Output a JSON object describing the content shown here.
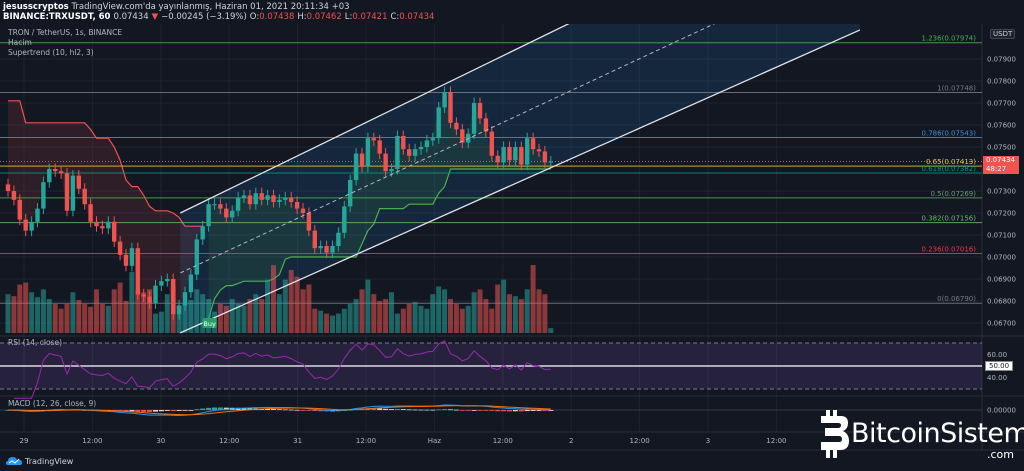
{
  "header": {
    "author": "jesusscryptos",
    "published": "TradingView.com'da yayınlanmış, Haziran 01, 2021 20:11:34 +03",
    "symbol": "BINANCE:TRXUSDT, 60",
    "last": "0.07434",
    "change": "−0.00245 (−3.19%)",
    "o_label": "O:",
    "o": "0.07438",
    "h_label": "H:",
    "h": "0.07462",
    "l_label": "L:",
    "l": "0.07421",
    "c_label": "C:",
    "c": "0.07434"
  },
  "legend": {
    "title": "TRON / TetherUS, 1s, BINANCE",
    "volume": "Hacim",
    "supertrend": "Supertrend (10, hl2, 3)"
  },
  "price_axis": {
    "currency": "USDT",
    "current_price": "0.07434",
    "countdown": "48:27"
  },
  "rsi": {
    "label": "RSI (14, close)",
    "period": 14,
    "ticks": [
      "60.00",
      "40.00"
    ],
    "midline": "50.00"
  },
  "macd": {
    "label": "MACD (12, 26, close, 9)",
    "fast": 12,
    "slow": 26,
    "signal": 9,
    "tick": "0.00000"
  },
  "signal_label": "Buy",
  "footer": {
    "tradingview": "TradingView"
  },
  "watermark": {
    "brand": "BitcoinSistemi",
    "suffix": ".com"
  },
  "colors": {
    "up": "#26a69a",
    "down": "#ef5350",
    "background": "#131722",
    "supertrend_up": "#4caf50",
    "supertrend_down": "#f05350",
    "rsi": "#9c27b0",
    "macd": "#2196f3",
    "macd_signal": "#ff6d00"
  },
  "chart_data": {
    "type": "candlestick",
    "interval": "60",
    "ylim": [
      0.0665,
      0.0802
    ],
    "grid": true,
    "y_ticks": [
      {
        "value": 0.079,
        "label": "0.07900"
      },
      {
        "value": 0.078,
        "label": "0.07800"
      },
      {
        "value": 0.077,
        "label": "0.07700"
      },
      {
        "value": 0.076,
        "label": "0.07600"
      },
      {
        "value": 0.075,
        "label": "0.07500"
      },
      {
        "value": 0.073,
        "label": "0.07300"
      },
      {
        "value": 0.072,
        "label": "0.07200"
      },
      {
        "value": 0.071,
        "label": "0.07100"
      },
      {
        "value": 0.07,
        "label": "0.07000"
      },
      {
        "value": 0.069,
        "label": "0.06900"
      },
      {
        "value": 0.068,
        "label": "0.06800"
      },
      {
        "value": 0.067,
        "label": "0.06700"
      }
    ],
    "x_ticks": [
      "29",
      "12:00",
      "30",
      "12:00",
      "31",
      "12:00",
      "Haz",
      "12:00",
      "2",
      "12:00",
      "3",
      "12:00"
    ],
    "close": [
      0.073,
      0.0726,
      0.0717,
      0.0712,
      0.0716,
      0.0722,
      0.0734,
      0.074,
      0.0739,
      0.0738,
      0.0721,
      0.0737,
      0.0731,
      0.0724,
      0.0716,
      0.0714,
      0.0713,
      0.0716,
      0.0707,
      0.0701,
      0.0696,
      0.0704,
      0.0683,
      0.0682,
      0.0679,
      0.0687,
      0.0689,
      0.069,
      0.0674,
      0.0678,
      0.0684,
      0.0692,
      0.0708,
      0.0714,
      0.0724,
      0.0724,
      0.0722,
      0.0718,
      0.0721,
      0.0727,
      0.0728,
      0.0724,
      0.0729,
      0.0726,
      0.0728,
      0.0725,
      0.0726,
      0.0727,
      0.0725,
      0.0722,
      0.072,
      0.0712,
      0.0704,
      0.0705,
      0.0702,
      0.0705,
      0.0711,
      0.0723,
      0.0735,
      0.0747,
      0.0741,
      0.0754,
      0.0753,
      0.0747,
      0.0739,
      0.074,
      0.0755,
      0.0749,
      0.0746,
      0.0749,
      0.075,
      0.0753,
      0.0754,
      0.0768,
      0.0775,
      0.0761,
      0.0758,
      0.0752,
      0.0756,
      0.077,
      0.0763,
      0.0757,
      0.0746,
      0.0743,
      0.075,
      0.0744,
      0.075,
      0.0742,
      0.0754,
      0.0749,
      0.0748,
      0.0743,
      0.07434
    ],
    "volume_relative": [
      40,
      38,
      50,
      52,
      42,
      37,
      45,
      35,
      30,
      25,
      30,
      42,
      34,
      30,
      27,
      45,
      30,
      28,
      45,
      52,
      33,
      63,
      45,
      42,
      45,
      20,
      22,
      40,
      48,
      28,
      30,
      34,
      45,
      40,
      35,
      22,
      30,
      28,
      35,
      30,
      28,
      35,
      40,
      35,
      55,
      70,
      40,
      55,
      65,
      58,
      45,
      50,
      25,
      23,
      20,
      18,
      20,
      25,
      30,
      35,
      45,
      55,
      40,
      33,
      35,
      42,
      20,
      25,
      30,
      32,
      28,
      25,
      40,
      48,
      45,
      35,
      30,
      25,
      28,
      42,
      45,
      35,
      25,
      50,
      55,
      40,
      38,
      35,
      45,
      70,
      45,
      40,
      5
    ],
    "supertrend": [
      0.0771,
      0.0771,
      0.0771,
      0.0761,
      0.0761,
      0.0761,
      0.0761,
      0.0761,
      0.0761,
      0.0761,
      0.0761,
      0.0761,
      0.0761,
      0.0761,
      0.0758,
      0.0754,
      0.0754,
      0.0754,
      0.075,
      0.0744,
      0.0735,
      0.0732,
      0.0732,
      0.0728,
      0.0723,
      0.0721,
      0.0721,
      0.0721,
      0.072,
      0.0718,
      0.0714,
      0.0714,
      0.0714,
      0.0714,
      0.0672,
      0.0681,
      0.0685,
      0.0687,
      0.0687,
      0.0688,
      0.0689,
      0.0689,
      0.0689,
      0.0689,
      0.0689,
      0.069,
      0.0692,
      0.0699,
      0.07,
      0.07,
      0.07,
      0.07,
      0.07,
      0.07,
      0.07,
      0.07,
      0.07,
      0.07,
      0.07,
      0.07,
      0.0706,
      0.0712,
      0.0715,
      0.0722,
      0.0722,
      0.0722,
      0.0722,
      0.0722,
      0.0724,
      0.0724,
      0.0724,
      0.0724,
      0.0724,
      0.0729,
      0.0732,
      0.074,
      0.074,
      0.074,
      0.074,
      0.074,
      0.074,
      0.074,
      0.074,
      0.074,
      0.074,
      0.074,
      0.074,
      0.074,
      0.074,
      0.074,
      0.074,
      0.074,
      0.074
    ],
    "supertrend_flip_index": 34,
    "buy_signal_index": 34,
    "fib_levels": [
      {
        "ratio": 1.236,
        "value": 0.07974,
        "label": "1.236(0.07974)",
        "color": "#4caf50"
      },
      {
        "ratio": 1,
        "value": 0.07748,
        "label": "1(0.07748)",
        "color": "#787b86"
      },
      {
        "ratio": 0.786,
        "value": 0.07543,
        "label": "0.786(0.07543)",
        "color": "#3d8fd6"
      },
      {
        "ratio": 0.65,
        "value": 0.07413,
        "label": "0.65(0.07413)",
        "color": "#e0c83a"
      },
      {
        "ratio": 0.618,
        "value": 0.07382,
        "label": "0.618(0.07382)",
        "color": "#089981"
      },
      {
        "ratio": 0.5,
        "value": 0.07269,
        "label": "0.5(0.07269)",
        "color": "#4caf50"
      },
      {
        "ratio": 0.382,
        "value": 0.07156,
        "label": "0.382(0.07156)",
        "color": "#66bb6a"
      },
      {
        "ratio": 0.236,
        "value": 0.07016,
        "label": "0.236(0.07016)",
        "color": "#f23645"
      },
      {
        "ratio": 0,
        "value": 0.0679,
        "label": "0(0.06790)",
        "color": "#787b86"
      }
    ],
    "parallel_channel": {
      "upper": [
        [
          29.2,
          0.072
        ],
        [
          101.5,
          0.08145
        ]
      ],
      "lower": [
        [
          29.2,
          0.06655
        ],
        [
          144.4,
          0.08032
        ]
      ]
    }
  }
}
